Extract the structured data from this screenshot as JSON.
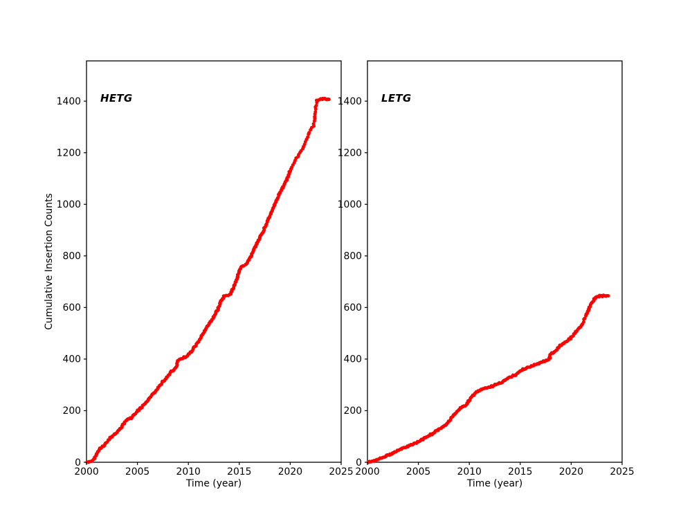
{
  "figure": {
    "background": "#ffffff",
    "axis_color": "#000000",
    "marker_color": "#ff0000"
  },
  "chart_data": [
    {
      "type": "scatter",
      "title": "HETG",
      "xlabel": "Time (year)",
      "ylabel": "Cumulative Insertion Counts",
      "xlim": [
        2000,
        2025
      ],
      "ylim": [
        0,
        1556
      ],
      "xticks": [
        2000,
        2005,
        2010,
        2015,
        2020,
        2025
      ],
      "yticks": [
        0,
        200,
        400,
        600,
        800,
        1000,
        1200,
        1400
      ],
      "grid": false,
      "legend": "none",
      "marker_color": "#ff0000",
      "final_count": 1409,
      "sparse_ranges": [
        [
          2019.9,
          2022.6
        ]
      ],
      "series": [
        {
          "name": "HETG cumulative insertions",
          "points": [
            [
              2000.05,
              0
            ],
            [
              2000.45,
              4
            ],
            [
              2000.75,
              12
            ],
            [
              2001.0,
              30
            ],
            [
              2001.2,
              46
            ],
            [
              2001.5,
              58
            ],
            [
              2001.8,
              68
            ],
            [
              2002.1,
              84
            ],
            [
              2002.5,
              100
            ],
            [
              2002.9,
              114
            ],
            [
              2003.3,
              130
            ],
            [
              2003.7,
              152
            ],
            [
              2004.0,
              166
            ],
            [
              2004.4,
              172
            ],
            [
              2004.8,
              190
            ],
            [
              2005.2,
              205
            ],
            [
              2005.7,
              225
            ],
            [
              2006.2,
              248
            ],
            [
              2006.7,
              272
            ],
            [
              2007.2,
              298
            ],
            [
              2007.7,
              322
            ],
            [
              2008.1,
              340
            ],
            [
              2008.5,
              358
            ],
            [
              2008.8,
              364
            ],
            [
              2008.95,
              393
            ],
            [
              2009.4,
              402
            ],
            [
              2009.9,
              412
            ],
            [
              2010.4,
              435
            ],
            [
              2010.9,
              462
            ],
            [
              2011.4,
              498
            ],
            [
              2011.9,
              530
            ],
            [
              2012.4,
              558
            ],
            [
              2012.9,
              592
            ],
            [
              2013.2,
              625
            ],
            [
              2013.5,
              642
            ],
            [
              2014.1,
              650
            ],
            [
              2014.6,
              692
            ],
            [
              2015.0,
              742
            ],
            [
              2015.25,
              760
            ],
            [
              2015.7,
              768
            ],
            [
              2016.1,
              795
            ],
            [
              2016.6,
              838
            ],
            [
              2017.1,
              878
            ],
            [
              2017.6,
              918
            ],
            [
              2018.1,
              965
            ],
            [
              2018.6,
              1012
            ],
            [
              2019.1,
              1052
            ],
            [
              2019.6,
              1092
            ],
            [
              2020.1,
              1142
            ],
            [
              2020.6,
              1178
            ],
            [
              2021.1,
              1208
            ],
            [
              2021.6,
              1252
            ],
            [
              2022.0,
              1288
            ],
            [
              2022.3,
              1302
            ],
            [
              2022.42,
              1340
            ],
            [
              2022.52,
              1385
            ],
            [
              2022.62,
              1404
            ],
            [
              2023.0,
              1407
            ],
            [
              2023.8,
              1409
            ]
          ]
        }
      ]
    },
    {
      "type": "scatter",
      "title": "LETG",
      "xlabel": "Time (year)",
      "ylabel": "",
      "xlim": [
        2000,
        2025
      ],
      "ylim": [
        0,
        1556
      ],
      "xticks": [
        2000,
        2005,
        2010,
        2015,
        2020,
        2025
      ],
      "yticks": [
        0,
        200,
        400,
        600,
        800,
        1000,
        1200,
        1400
      ],
      "grid": false,
      "legend": "none",
      "marker_color": "#ff0000",
      "final_count": 646,
      "sparse_ranges": [
        [
          2021.05,
          2021.5
        ]
      ],
      "series": [
        {
          "name": "LETG cumulative insertions",
          "points": [
            [
              2000.1,
              0
            ],
            [
              2000.6,
              4
            ],
            [
              2001.1,
              12
            ],
            [
              2001.6,
              20
            ],
            [
              2002.1,
              28
            ],
            [
              2002.6,
              38
            ],
            [
              2003.1,
              48
            ],
            [
              2003.6,
              56
            ],
            [
              2004.1,
              64
            ],
            [
              2004.6,
              71
            ],
            [
              2005.1,
              82
            ],
            [
              2005.6,
              93
            ],
            [
              2006.1,
              105
            ],
            [
              2006.6,
              116
            ],
            [
              2007.1,
              128
            ],
            [
              2007.6,
              143
            ],
            [
              2008.0,
              160
            ],
            [
              2008.4,
              178
            ],
            [
              2008.8,
              198
            ],
            [
              2009.2,
              213
            ],
            [
              2009.7,
              222
            ],
            [
              2010.1,
              248
            ],
            [
              2010.6,
              268
            ],
            [
              2011.1,
              280
            ],
            [
              2011.6,
              286
            ],
            [
              2012.1,
              292
            ],
            [
              2012.6,
              301
            ],
            [
              2013.1,
              309
            ],
            [
              2013.6,
              319
            ],
            [
              2014.1,
              331
            ],
            [
              2014.6,
              341
            ],
            [
              2015.1,
              356
            ],
            [
              2015.6,
              366
            ],
            [
              2016.1,
              374
            ],
            [
              2016.6,
              381
            ],
            [
              2017.1,
              388
            ],
            [
              2017.6,
              394
            ],
            [
              2017.85,
              398
            ],
            [
              2017.95,
              420
            ],
            [
              2018.4,
              430
            ],
            [
              2018.9,
              452
            ],
            [
              2019.4,
              465
            ],
            [
              2019.9,
              480
            ],
            [
              2020.4,
              502
            ],
            [
              2020.9,
              525
            ],
            [
              2021.15,
              538
            ],
            [
              2021.25,
              552
            ],
            [
              2021.45,
              568
            ],
            [
              2021.7,
              592
            ],
            [
              2021.95,
              615
            ],
            [
              2022.2,
              628
            ],
            [
              2022.5,
              640
            ],
            [
              2022.8,
              644
            ],
            [
              2023.6,
              646
            ]
          ]
        }
      ]
    }
  ]
}
